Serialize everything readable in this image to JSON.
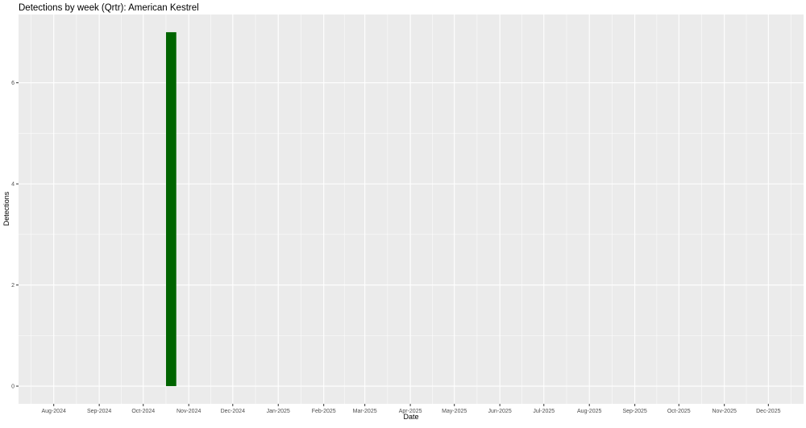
{
  "chart_data": {
    "type": "bar",
    "title": "Detections by week (Qrtr): American Kestrel",
    "xlabel": "Date",
    "ylabel": "Detections",
    "xlim": [
      "2024-07-08",
      "2025-12-25"
    ],
    "ylim": [
      -0.35,
      7.35
    ],
    "grid": true,
    "x_ticks": [
      "2024-08-01",
      "2024-09-01",
      "2024-10-01",
      "2024-11-01",
      "2024-12-01",
      "2025-01-01",
      "2025-02-01",
      "2025-03-01",
      "2025-04-01",
      "2025-05-01",
      "2025-06-01",
      "2025-07-01",
      "2025-08-01",
      "2025-09-01",
      "2025-10-01",
      "2025-11-01",
      "2025-12-01"
    ],
    "x_tick_labels": [
      "Aug-2024",
      "Sep-2024",
      "Oct-2024",
      "Nov-2024",
      "Dec-2024",
      "Jan-2025",
      "Feb-2025",
      "Mar-2025",
      "Apr-2025",
      "May-2025",
      "Jun-2025",
      "Jul-2025",
      "Aug-2025",
      "Sep-2025",
      "Oct-2025",
      "Nov-2025",
      "Dec-2025"
    ],
    "y_ticks": [
      0,
      2,
      4,
      6
    ],
    "y_tick_labels": [
      "0",
      "2",
      "4",
      "6"
    ],
    "bars": [
      {
        "x": "2024-10-20",
        "value": 7
      }
    ],
    "bar_width_days": 7,
    "colors": {
      "bar": "#006400",
      "panel": "#ebebeb",
      "grid": "#ffffff"
    }
  }
}
